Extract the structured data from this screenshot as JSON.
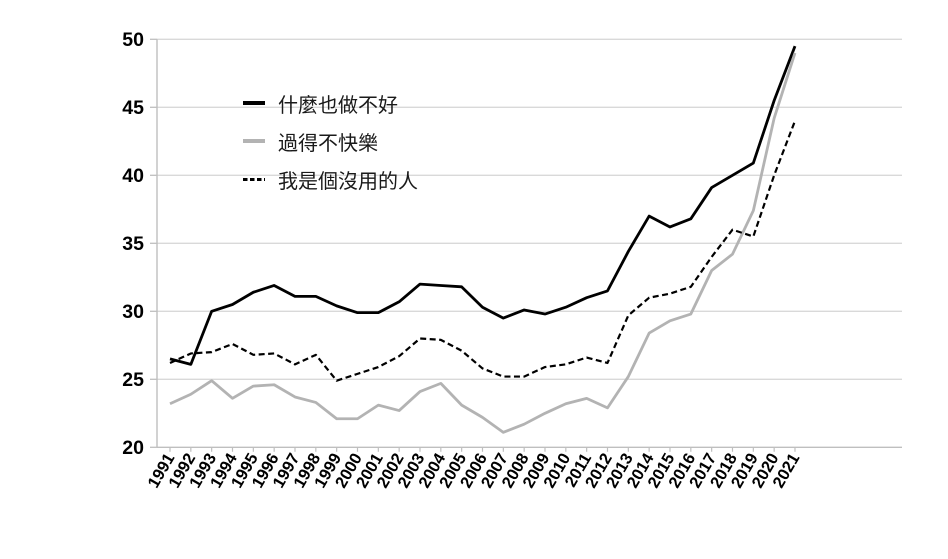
{
  "chart_data": {
    "type": "line",
    "x": [
      1991,
      1992,
      1993,
      1994,
      1995,
      1996,
      1997,
      1998,
      1999,
      2000,
      2001,
      2002,
      2003,
      2004,
      2005,
      2006,
      2007,
      2008,
      2009,
      2010,
      2011,
      2012,
      2013,
      2014,
      2015,
      2016,
      2017,
      2018,
      2019,
      2020,
      2021
    ],
    "series": [
      {
        "name": "什麼也做不好",
        "style": "solid",
        "color": "#000000",
        "values": [
          26.5,
          26.1,
          30.0,
          30.5,
          31.4,
          31.9,
          31.1,
          31.1,
          30.4,
          29.9,
          29.9,
          30.7,
          32.0,
          31.9,
          31.8,
          30.3,
          29.5,
          30.1,
          29.8,
          30.3,
          31.0,
          31.5,
          34.4,
          37.0,
          36.2,
          36.8,
          39.1,
          40.0,
          40.9,
          45.5,
          49.5
        ]
      },
      {
        "name": "過得不快樂",
        "style": "solid",
        "color": "#b3b3b3",
        "values": [
          23.2,
          23.9,
          24.9,
          23.6,
          24.5,
          24.6,
          23.7,
          23.3,
          22.1,
          22.1,
          23.1,
          22.7,
          24.1,
          24.7,
          23.1,
          22.2,
          21.1,
          21.7,
          22.5,
          23.2,
          23.6,
          22.9,
          25.2,
          28.4,
          29.3,
          29.8,
          33.0,
          34.2,
          37.4,
          44.2,
          49.0
        ]
      },
      {
        "name": "我是個沒用的人",
        "style": "dashed",
        "color": "#000000",
        "values": [
          26.2,
          26.9,
          27.0,
          27.6,
          26.8,
          26.9,
          26.1,
          26.8,
          24.9,
          25.4,
          25.9,
          26.7,
          28.0,
          27.9,
          27.1,
          25.8,
          25.2,
          25.2,
          25.9,
          26.1,
          26.6,
          26.2,
          29.7,
          31.0,
          31.3,
          31.8,
          34.0,
          36.0,
          35.5,
          40.0,
          44.0
        ]
      }
    ],
    "title": "",
    "xlabel": "",
    "ylabel": "",
    "ylim": [
      20,
      50
    ],
    "yticks": [
      20,
      25,
      30,
      35,
      40,
      45,
      50
    ],
    "grid": "horizontal",
    "legend_position": "upper-left-inside",
    "colors": {
      "gridline": "#d9d9d9",
      "axis_line": "#bfbfbf",
      "tick_label": "#000000"
    }
  }
}
